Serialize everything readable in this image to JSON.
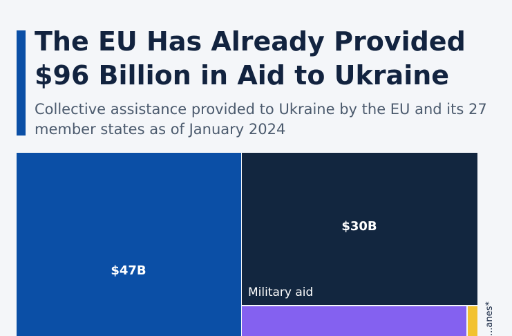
{
  "header": {
    "title": "The EU Has Already Provided $96 Billion in Aid to Ukraine",
    "subtitle": "Collective assistance provided to Ukraine by the EU and its 27 member states as of January 2024"
  },
  "colors": {
    "accent": "#0b4fa6",
    "title": "#12233f",
    "subtitle": "#4b5a6d"
  },
  "chart_data": {
    "type": "treemap",
    "values_unit": "$B",
    "cells": [
      {
        "value_label": "$47B",
        "label": "",
        "value": 47,
        "color": "#0b4fa6"
      },
      {
        "value_label": "$30B",
        "label": "Military aid",
        "value": 30,
        "color": "#12263f"
      },
      {
        "value_label": "",
        "label": "",
        "color": "#8461f0"
      },
      {
        "value_label": "",
        "label": "",
        "color": "#f2c230"
      }
    ],
    "side_label": "...anes*"
  }
}
